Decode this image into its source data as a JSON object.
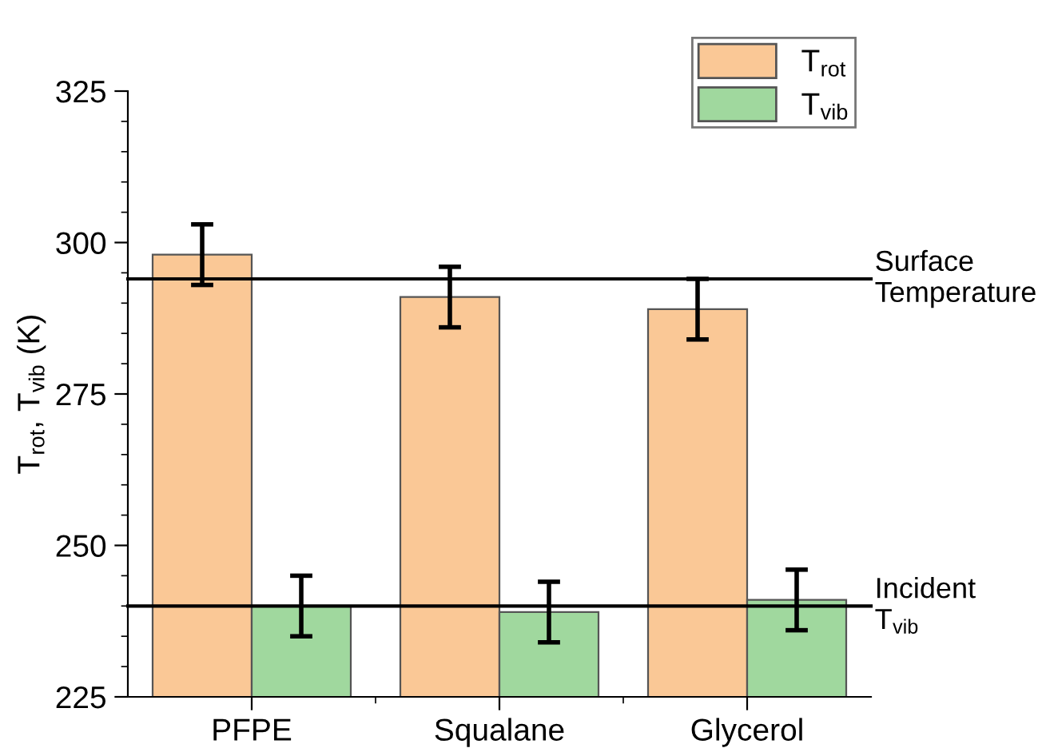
{
  "chart_data": {
    "type": "bar",
    "ylabel": "T$_{rot}$, T$_{vib}$ (K)",
    "categories": [
      "PFPE",
      "Squalane",
      "Glycerol"
    ],
    "series": [
      {
        "name": "T$_{rot}$",
        "color": "#fac896",
        "values": [
          298,
          291,
          289
        ],
        "errors": [
          5,
          5,
          5
        ]
      },
      {
        "name": "T$_{vib}$",
        "color": "#a0d89e",
        "values": [
          240,
          239,
          241
        ],
        "errors": [
          5,
          5,
          5
        ]
      }
    ],
    "ylim": [
      225,
      325
    ],
    "yticks": [
      225,
      250,
      275,
      300,
      325
    ],
    "ref_lines": [
      {
        "axis": "y",
        "value": 294,
        "label": "Surface\nTemperature",
        "color": "#000000"
      },
      {
        "axis": "y",
        "value": 240,
        "label": "Incident\nT$_{vib}$",
        "color": "#000000"
      }
    ],
    "legend": "top right",
    "grid": false
  }
}
